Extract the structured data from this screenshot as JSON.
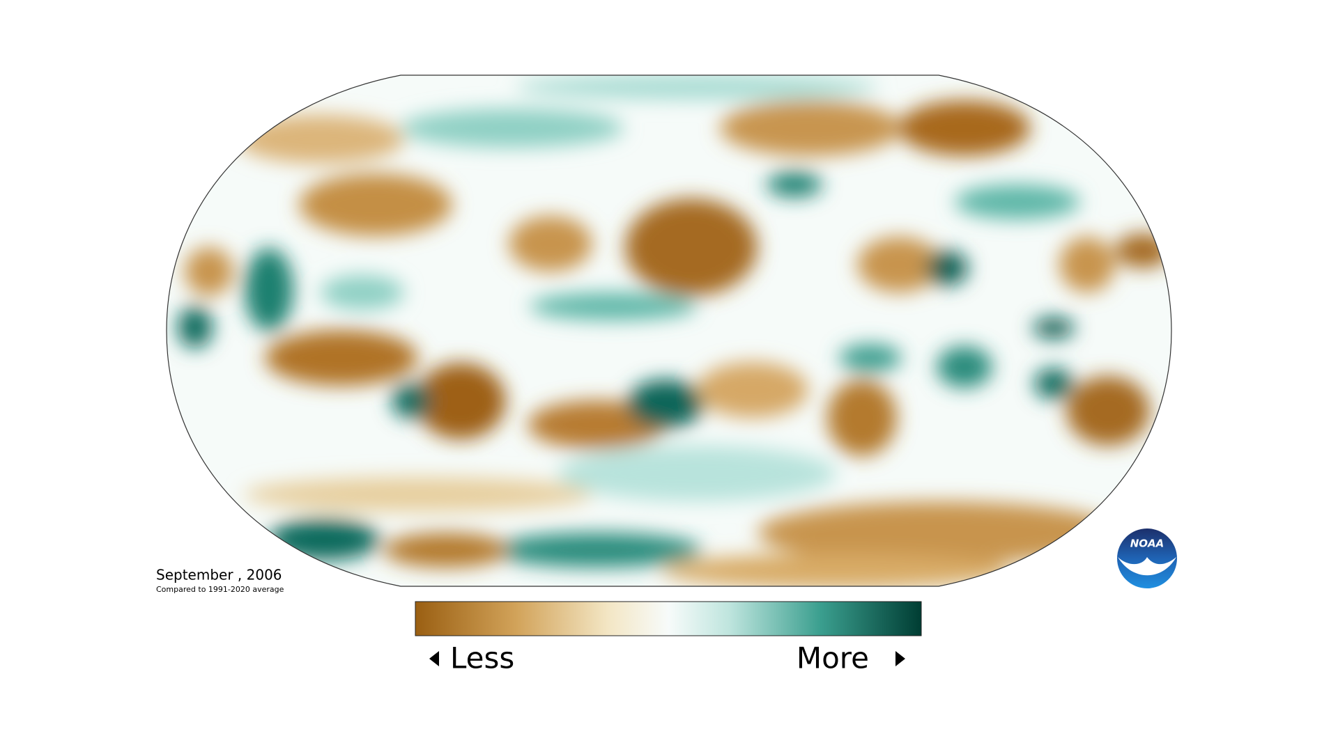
{
  "map": {
    "title": "September , 2006",
    "subtitle": "Compared to 1991-2020 average"
  },
  "legend": {
    "low_label": "Less",
    "high_label": "More"
  },
  "logo": {
    "text": "NOAA"
  }
}
